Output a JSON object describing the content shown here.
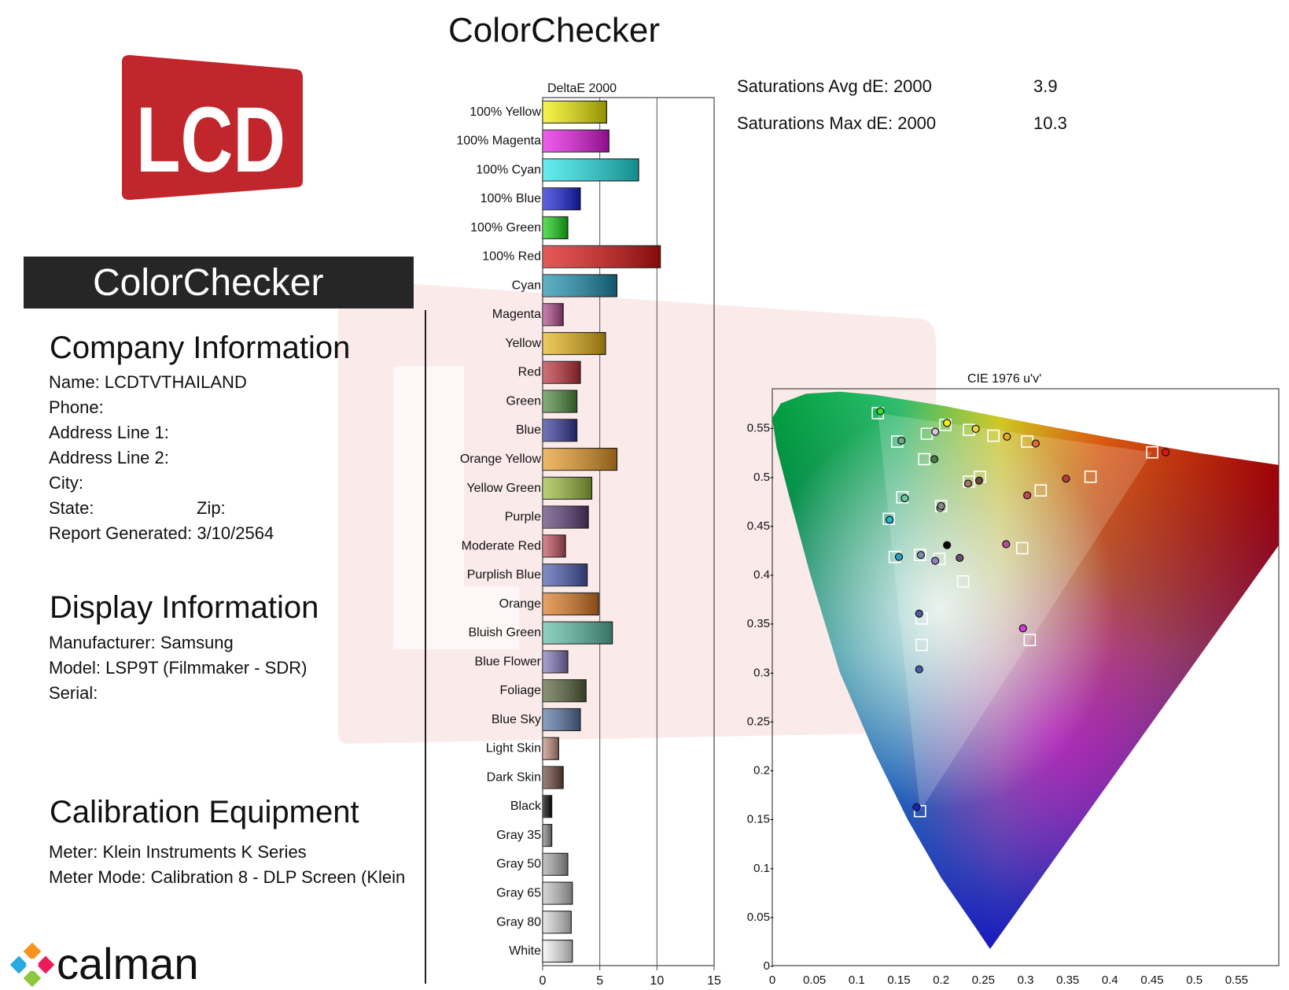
{
  "header": {
    "title": "ColorChecker"
  },
  "sidebar": {
    "logo_text": "LCD",
    "title": "ColorChecker",
    "company": {
      "heading": "Company Information",
      "name": "Name: LCDTVTHAILAND",
      "phone": "Phone:",
      "address1": "Address Line 1:",
      "address2": "Address Line 2:",
      "city": "City:",
      "state": "State:",
      "zip": "Zip:",
      "generated": "Report Generated: 3/10/2564"
    },
    "display": {
      "heading": "Display Information",
      "manufacturer": "Manufacturer: Samsung",
      "model": "Model: LSP9T (Filmmaker - SDR)",
      "serial": "Serial:"
    },
    "calibration": {
      "heading": "Calibration Equipment",
      "meter": "Meter: Klein Instruments K Series",
      "meter_mode": "Meter Mode: Calibration 8 - DLP Screen (Klein"
    },
    "brand": "calman"
  },
  "summary": {
    "avg_label": "Saturations Avg dE:  2000",
    "avg_value": "3.9",
    "max_label": "Saturations Max dE: 2000",
    "max_value": "10.3"
  },
  "chart_data": [
    {
      "type": "bar",
      "orientation": "horizontal",
      "title": "DeltaE 2000",
      "xlim": [
        0,
        15
      ],
      "xticks": [
        "0",
        "5",
        "10",
        "15"
      ],
      "grid": true,
      "categories": [
        "100% Yellow",
        "100% Magenta",
        "100% Cyan",
        "100% Blue",
        "100% Green",
        "100% Red",
        "Cyan",
        "Magenta",
        "Yellow",
        "Red",
        "Green",
        "Blue",
        "Orange Yellow",
        "Yellow Green",
        "Purple",
        "Moderate Red",
        "Purplish Blue",
        "Orange",
        "Bluish Green",
        "Blue Flower",
        "Foliage",
        "Blue Sky",
        "Light Skin",
        "Dark Skin",
        "Black",
        "Gray 35",
        "Gray 50",
        "Gray 65",
        "Gray 80",
        "White"
      ],
      "values": [
        5.6,
        5.8,
        8.4,
        3.3,
        2.2,
        10.3,
        6.5,
        1.8,
        5.5,
        3.3,
        3.0,
        3.0,
        6.5,
        4.3,
        4.0,
        2.0,
        3.9,
        4.9,
        6.1,
        2.2,
        3.8,
        3.3,
        1.4,
        1.8,
        0.8,
        0.8,
        2.2,
        2.6,
        2.5,
        2.6
      ],
      "colors": [
        "#f2f000",
        "#e817e4",
        "#1fe6e8",
        "#1620d8",
        "#14d214",
        "#dd1010",
        "#1a8fb0",
        "#b04a8a",
        "#e8b416",
        "#c0303a",
        "#4f8a3e",
        "#34399a",
        "#e89a26",
        "#9bbc3c",
        "#5c3e78",
        "#c4505e",
        "#4a5aae",
        "#de7a22",
        "#5cbea8",
        "#8479bd",
        "#58643a",
        "#5876a6",
        "#c49080",
        "#6e4a3c",
        "#050505",
        "#8a8a8a",
        "#a8a8a8",
        "#c4c4c4",
        "#dadada",
        "#f4f4f4"
      ]
    },
    {
      "type": "scatter",
      "title": "CIE 1976 u'v'",
      "xlim": [
        0,
        0.6
      ],
      "ylim": [
        0,
        0.59
      ],
      "xticks": [
        "0",
        "0.05",
        "0.1",
        "0.15",
        "0.2",
        "0.25",
        "0.3",
        "0.35",
        "0.4",
        "0.45",
        "0.5",
        "0.55"
      ],
      "yticks": [
        "0-",
        "0.05-",
        "0.1-",
        "0.15-",
        "0.2-",
        "0.25-",
        "0.3-",
        "0.35-",
        "0.4-",
        "0.45-",
        "0.5-",
        "0.55-"
      ],
      "targets": [
        [
          0.125,
          0.565
        ],
        [
          0.148,
          0.536
        ],
        [
          0.183,
          0.544
        ],
        [
          0.205,
          0.553
        ],
        [
          0.233,
          0.548
        ],
        [
          0.262,
          0.542
        ],
        [
          0.302,
          0.536
        ],
        [
          0.18,
          0.518
        ],
        [
          0.154,
          0.479
        ],
        [
          0.138,
          0.457
        ],
        [
          0.145,
          0.418
        ],
        [
          0.175,
          0.42
        ],
        [
          0.198,
          0.416
        ],
        [
          0.2,
          0.47
        ],
        [
          0.233,
          0.495
        ],
        [
          0.246,
          0.5
        ],
        [
          0.318,
          0.486
        ],
        [
          0.377,
          0.5
        ],
        [
          0.45,
          0.525
        ],
        [
          0.226,
          0.393
        ],
        [
          0.296,
          0.427
        ],
        [
          0.177,
          0.355
        ],
        [
          0.177,
          0.328
        ],
        [
          0.305,
          0.333
        ],
        [
          0.175,
          0.158
        ]
      ],
      "measured": [
        {
          "u": 0.128,
          "v": 0.567,
          "color": "#2ee22e"
        },
        {
          "u": 0.153,
          "v": 0.537,
          "color": "#6ca87c"
        },
        {
          "u": 0.193,
          "v": 0.546,
          "color": "#d9c2e0"
        },
        {
          "u": 0.207,
          "v": 0.555,
          "color": "#f4f010"
        },
        {
          "u": 0.241,
          "v": 0.549,
          "color": "#e8d24c"
        },
        {
          "u": 0.278,
          "v": 0.541,
          "color": "#e8a82c"
        },
        {
          "u": 0.312,
          "v": 0.534,
          "color": "#e06a32"
        },
        {
          "u": 0.192,
          "v": 0.518,
          "color": "#4a7c40"
        },
        {
          "u": 0.157,
          "v": 0.478,
          "color": "#6cc6a2"
        },
        {
          "u": 0.139,
          "v": 0.456,
          "color": "#1eb6d4"
        },
        {
          "u": 0.15,
          "v": 0.418,
          "color": "#2aa0c8"
        },
        {
          "u": 0.176,
          "v": 0.42,
          "color": "#7a8cb0"
        },
        {
          "u": 0.193,
          "v": 0.414,
          "color": "#9080c0"
        },
        {
          "u": 0.199,
          "v": 0.468,
          "color": "#bababa"
        },
        {
          "u": 0.2,
          "v": 0.47,
          "color": "#888888"
        },
        {
          "u": 0.207,
          "v": 0.43,
          "color": "#050505"
        },
        {
          "u": 0.222,
          "v": 0.417,
          "color": "#6a4a7a"
        },
        {
          "u": 0.232,
          "v": 0.493,
          "color": "#a07a66"
        },
        {
          "u": 0.245,
          "v": 0.496,
          "color": "#6a4638"
        },
        {
          "u": 0.302,
          "v": 0.481,
          "color": "#c04858"
        },
        {
          "u": 0.348,
          "v": 0.498,
          "color": "#c0363e"
        },
        {
          "u": 0.466,
          "v": 0.525,
          "color": "#e51414"
        },
        {
          "u": 0.277,
          "v": 0.431,
          "color": "#b45090"
        },
        {
          "u": 0.174,
          "v": 0.36,
          "color": "#4a5aae"
        },
        {
          "u": 0.174,
          "v": 0.303,
          "color": "#4a5aae"
        },
        {
          "u": 0.297,
          "v": 0.345,
          "color": "#d838d8"
        },
        {
          "u": 0.171,
          "v": 0.162,
          "color": "#1a20c8"
        }
      ]
    }
  ]
}
